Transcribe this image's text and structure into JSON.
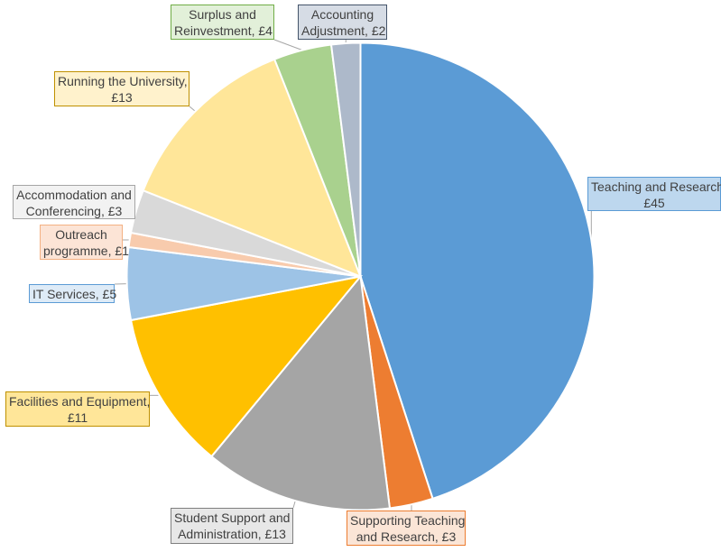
{
  "chart_data": {
    "type": "pie",
    "title": "",
    "start_angle_deg": 0,
    "direction": "clockwise",
    "slices": [
      {
        "name": "Teaching and Research",
        "value": 45,
        "color": "#5B9BD5",
        "label_bg": "#BDD7EE",
        "label_border": "#5B9BD5",
        "label_line1": "Teaching and Research,",
        "label_line2": "£45"
      },
      {
        "name": "Supporting Teaching and Research",
        "value": 3,
        "color": "#ED7D31",
        "label_bg": "#FBE5D6",
        "label_border": "#ED7D31",
        "label_line1": "Supporting Teaching",
        "label_line2": "and Research, £3"
      },
      {
        "name": "Student Support and Administration",
        "value": 13,
        "color": "#A5A5A5",
        "label_bg": "#E7E7E7",
        "label_border": "#7F7F7F",
        "label_line1": "Student Support and",
        "label_line2": "Administration, £13"
      },
      {
        "name": "Facilities and Equipment",
        "value": 11,
        "color": "#FFC000",
        "label_bg": "#FFE699",
        "label_border": "#BF9000",
        "label_line1": "Facilities and Equipment,",
        "label_line2": "£11"
      },
      {
        "name": "IT Services",
        "value": 5,
        "color": "#9DC3E6",
        "label_bg": "#DEEBF7",
        "label_border": "#5B9BD5",
        "label_line1": "IT Services, £5",
        "label_line2": ""
      },
      {
        "name": "Outreach programme",
        "value": 1,
        "color": "#F8CBAD",
        "label_bg": "#FCE4D6",
        "label_border": "#F4B183",
        "label_line1": "Outreach",
        "label_line2": "programme, £1"
      },
      {
        "name": "Accommodation and Conferencing",
        "value": 3,
        "color": "#D9D9D9",
        "label_bg": "#F2F2F2",
        "label_border": "#A5A5A5",
        "label_line1": "Accommodation and",
        "label_line2": "Conferencing, £3"
      },
      {
        "name": "Running the University",
        "value": 13,
        "color": "#FFE699",
        "label_bg": "#FFF2CC",
        "label_border": "#BF9000",
        "label_line1": "Running the University,",
        "label_line2": "£13"
      },
      {
        "name": "Surplus and Reinvestment",
        "value": 4,
        "color": "#A9D18E",
        "label_bg": "#E2F0D9",
        "label_border": "#70AD47",
        "label_line1": "Surplus and",
        "label_line2": "Reinvestment, £4"
      },
      {
        "name": "Accounting Adjustment",
        "value": 2,
        "color": "#ADB9CA",
        "label_bg": "#D6DCE5",
        "label_border": "#44546A",
        "label_line1": "Accounting",
        "label_line2": "Adjustment, £2"
      }
    ]
  }
}
